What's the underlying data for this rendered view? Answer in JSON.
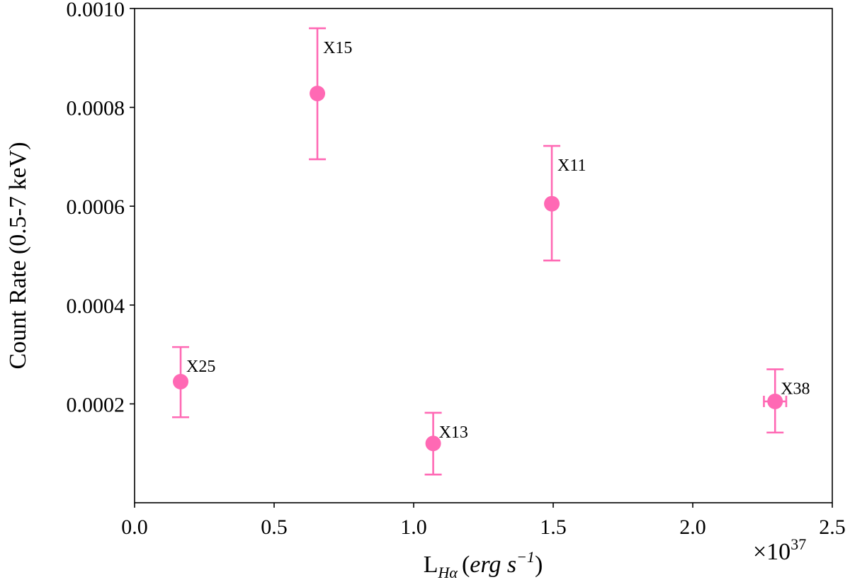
{
  "chart_data": {
    "type": "scatter",
    "title": "",
    "xlabel": {
      "main": "L",
      "sub": "Hα",
      "units_open": "(",
      "units_a": "erg s",
      "units_sup": "−1",
      "units_close": ")"
    },
    "ylabel": "Count Rate (0.5-7 keV)",
    "x_offset_label": {
      "base": "×10",
      "exp": "37"
    },
    "xlim": [
      0.0,
      2.5
    ],
    "ylim": [
      0.0,
      0.001
    ],
    "xticks": [
      "0.0",
      "0.5",
      "1.0",
      "1.5",
      "2.0",
      "2.5"
    ],
    "yticks": [
      "0.0002",
      "0.0004",
      "0.0006",
      "0.0008",
      "0.0010"
    ],
    "grid": false,
    "marker_color": "#ff69b4",
    "points": [
      {
        "label": "X25",
        "x": 0.165,
        "y": 0.000245,
        "y_err_low": 7.2e-05,
        "y_err_high": 7e-05,
        "x_err": 0.0
      },
      {
        "label": "X15",
        "x": 0.655,
        "y": 0.000828,
        "y_err_low": 0.000133,
        "y_err_high": 0.000132,
        "x_err": 0.0
      },
      {
        "label": "X13",
        "x": 1.07,
        "y": 0.00012,
        "y_err_low": 6.3e-05,
        "y_err_high": 6.2e-05,
        "x_err": 0.0
      },
      {
        "label": "X11",
        "x": 1.495,
        "y": 0.000605,
        "y_err_low": 0.000115,
        "y_err_high": 0.000117,
        "x_err": 0.0
      },
      {
        "label": "X38",
        "x": 2.295,
        "y": 0.000205,
        "y_err_low": 6.3e-05,
        "y_err_high": 6.5e-05,
        "x_err": 0.04
      }
    ]
  }
}
